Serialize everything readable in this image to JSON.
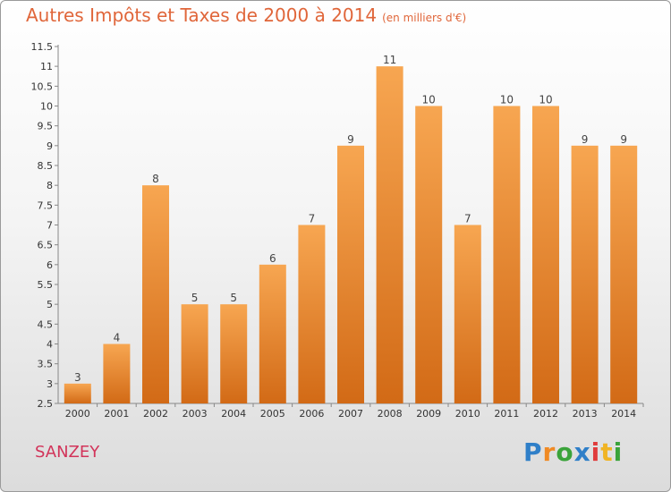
{
  "title": "Autres Impôts et Taxes de 2000 à 2014",
  "subtitle": "(en milliers d'€)",
  "place": "SANZEY",
  "logo": {
    "text": "Proxiti",
    "letters": [
      "P",
      "r",
      "o",
      "x",
      "i",
      "t",
      "i"
    ],
    "colors": [
      "#2f7fc8",
      "#f08a24",
      "#3aa33a",
      "#2f7fc8",
      "#e03c3c",
      "#f0b424",
      "#3aa33a"
    ]
  },
  "colors": {
    "bar_top": "#f7a651",
    "bar_bottom": "#d26a16",
    "text_accent": "#e0663a",
    "place_color": "#d2345a"
  },
  "chart_data": {
    "type": "bar",
    "categories": [
      "2000",
      "2001",
      "2002",
      "2003",
      "2004",
      "2005",
      "2006",
      "2007",
      "2008",
      "2009",
      "2010",
      "2011",
      "2012",
      "2013",
      "2014"
    ],
    "values": [
      3,
      4,
      8,
      5,
      5,
      6,
      7,
      9,
      11,
      10,
      7,
      10,
      10,
      9,
      9
    ],
    "ylim": [
      2.5,
      11.5
    ],
    "yticks": [
      "2.5",
      "3",
      "3.5",
      "4",
      "4.5",
      "5",
      "5.5",
      "6",
      "6.5",
      "7",
      "7.5",
      "8",
      "8.5",
      "9",
      "9.5",
      "10",
      "10.5",
      "11",
      "11.5"
    ],
    "grid": false,
    "data_labels": true
  }
}
